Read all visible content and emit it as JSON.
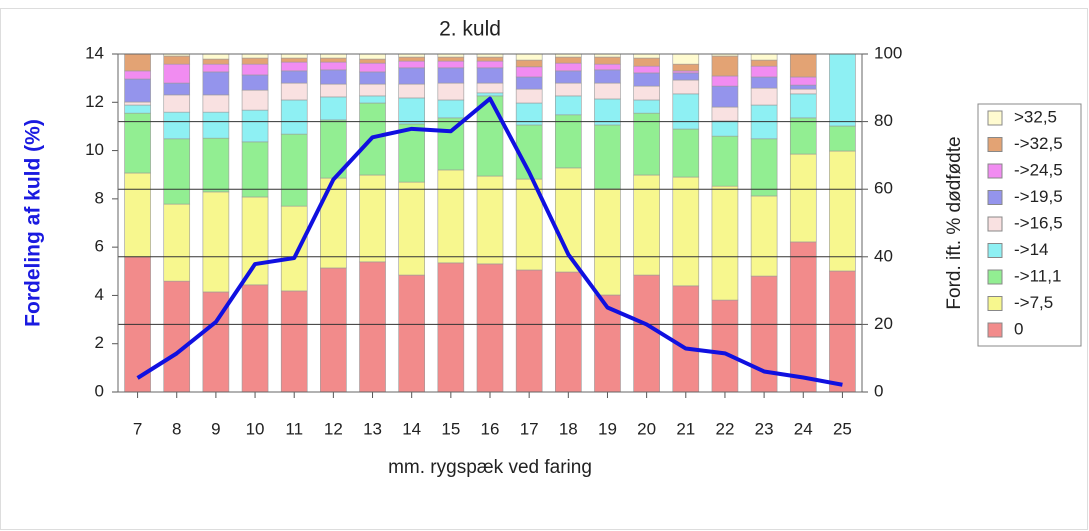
{
  "chart_data": {
    "type": "stacked_bar_line",
    "title": "2. kuld",
    "xlabel": "mm. rygspæk ved faring",
    "ylabel": "Fordeling af kuld (%)",
    "y2label": "Ford. ift. % dødfødte",
    "categories": [
      "7",
      "8",
      "9",
      "10",
      "11",
      "12",
      "13",
      "14",
      "15",
      "16",
      "17",
      "18",
      "19",
      "20",
      "21",
      "22",
      "23",
      "24",
      "25"
    ],
    "ylim": [
      0,
      14
    ],
    "yticks": [
      0,
      2,
      4,
      6,
      8,
      10,
      12,
      14
    ],
    "y2lim": [
      0,
      100
    ],
    "y2ticks": [
      0,
      20,
      40,
      60,
      80,
      100
    ],
    "grid": true,
    "series": [
      {
        "name": "0",
        "color": "#f28b8b",
        "axis": "y2",
        "values": [
          40,
          32.8,
          29.6,
          31.7,
          29.9,
          36.7,
          38.5,
          34.6,
          38.2,
          37.9,
          36.1,
          35.5,
          28.7,
          34.6,
          31.4,
          27.2,
          34.3,
          44.4,
          35.8
        ]
      },
      {
        "name": "->7,5",
        "color": "#f7f78e",
        "axis": "y2",
        "values": [
          24.8,
          22.8,
          29.6,
          26,
          25.1,
          26.6,
          25.7,
          27.5,
          27.5,
          26,
          26.9,
          30.8,
          31.4,
          29.6,
          32.2,
          33.7,
          23.7,
          26,
          35.5
        ]
      },
      {
        "name": "->11,1",
        "color": "#92ee92",
        "axis": "y2",
        "values": [
          17.7,
          19.3,
          15.9,
          16.3,
          21.3,
          17.2,
          21.3,
          17.2,
          15.4,
          23.7,
          16,
          15.7,
          18.9,
          18.3,
          14.2,
          14.8,
          16.9,
          10.7,
          7.4
        ]
      },
      {
        "name": "->14",
        "color": "#8ef0f3",
        "axis": "y2",
        "values": [
          2.4,
          7.9,
          7.7,
          9.4,
          10.1,
          6.8,
          2.1,
          7.7,
          5.3,
          0.9,
          6.5,
          5.6,
          7.7,
          3.9,
          10.4,
          4.5,
          10,
          7.1,
          21.3
        ]
      },
      {
        "name": "->16,5",
        "color": "#f9e1e1",
        "axis": "y2",
        "values": [
          0.9,
          5.1,
          5.1,
          5.9,
          5,
          3.8,
          3.5,
          4.1,
          5,
          2.9,
          4.1,
          3.8,
          4.7,
          4.1,
          4.1,
          4.1,
          5,
          1.4,
          0
        ]
      },
      {
        "name": "->19,5",
        "color": "#9494ec",
        "axis": "y2",
        "values": [
          6.8,
          3.5,
          6.8,
          4.5,
          3.6,
          4.2,
          3.6,
          4.8,
          4.5,
          4.5,
          3.6,
          3.6,
          3.9,
          3.9,
          2.1,
          6.2,
          3.3,
          1.2,
          0
        ]
      },
      {
        "name": "->24,5",
        "color": "#f18cf1",
        "axis": "y2",
        "values": [
          2.4,
          5.6,
          2.3,
          3.2,
          2.6,
          2.3,
          2.6,
          2,
          2,
          2,
          3,
          2.3,
          1.7,
          2,
          0.6,
          3,
          3.2,
          2.4,
          0
        ]
      },
      {
        "name": "->32,5",
        "color": "#e3a374",
        "axis": "y2",
        "values": [
          5,
          2.4,
          1.5,
          1.8,
          1.2,
          1.2,
          1.2,
          1.2,
          1.2,
          1.2,
          2,
          1.8,
          2.1,
          2.4,
          2,
          5.9,
          1.8,
          6.8,
          0
        ]
      },
      {
        "name": ">32,5",
        "color": "#fffbd0",
        "axis": "y2",
        "values": [
          0,
          0.6,
          1.5,
          1.2,
          1.2,
          1.2,
          1.5,
          0.9,
          0.9,
          0.9,
          1.8,
          0.9,
          0.9,
          1.2,
          3,
          0.6,
          1.8,
          0,
          0
        ]
      }
    ],
    "line": {
      "color": "#1010e0",
      "values": [
        0.58,
        1.6,
        2.9,
        5.3,
        5.55,
        8.8,
        10.55,
        10.9,
        10.8,
        12.15,
        9.1,
        5.7,
        3.5,
        2.8,
        1.8,
        1.6,
        0.85,
        0.6,
        0.3
      ]
    }
  }
}
